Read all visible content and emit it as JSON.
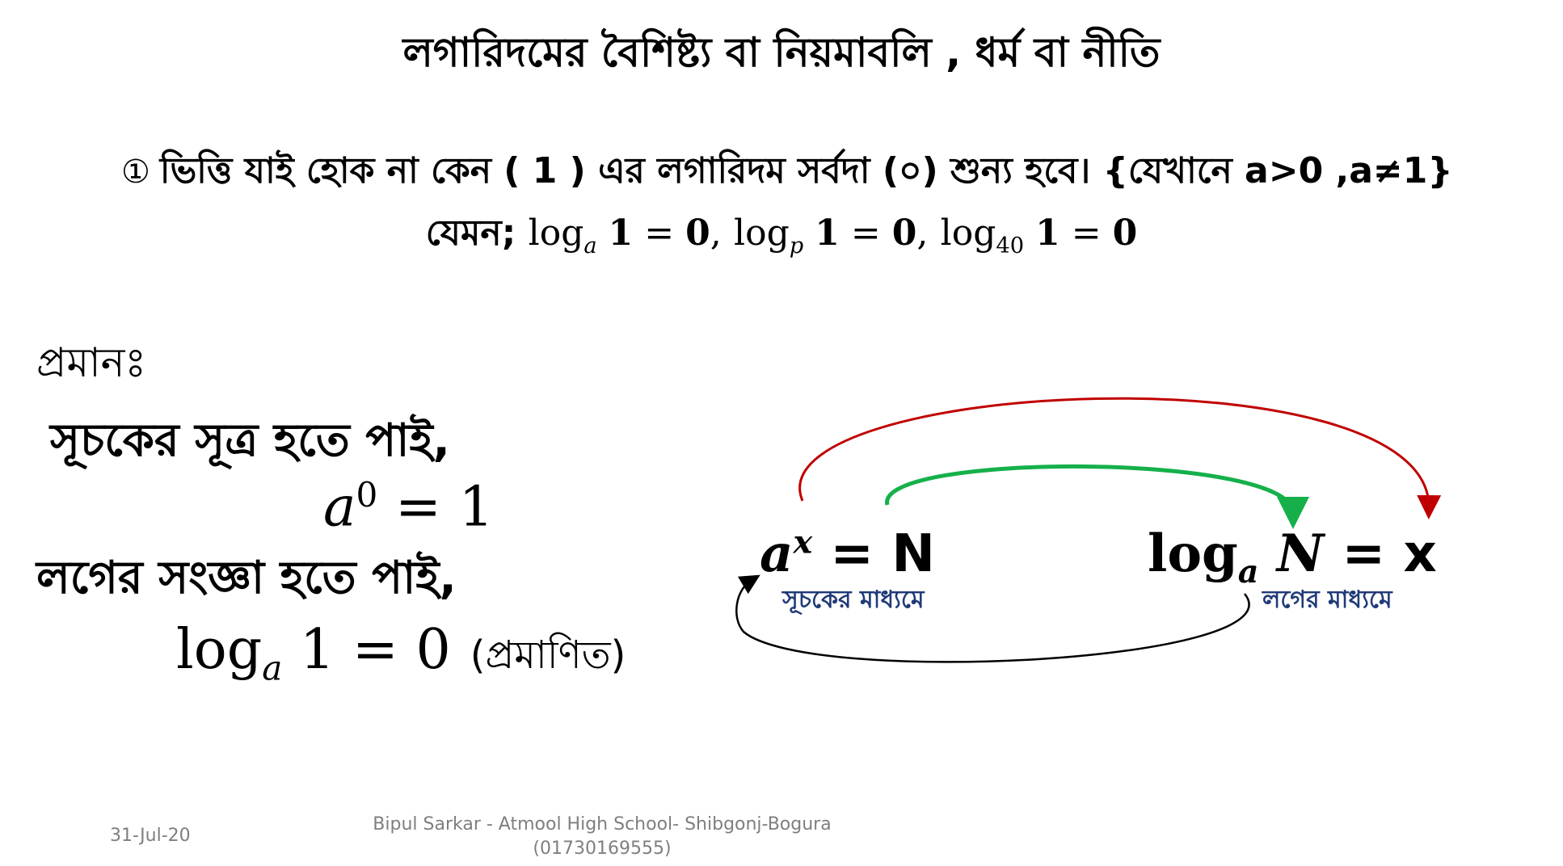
{
  "title": "লগারিদমের বৈশিষ্ট্য বা নিয়মাবলি , ধর্ম বা নীতি",
  "rule": {
    "number": "①",
    "text": "ভিত্তি যাই হোক না কেন ( 1 ) এর লগারিদম সর্বদা (০) শুন্য হবে।",
    "condition": "{যেখানে a>0  ,a≠1}"
  },
  "example": {
    "label": "যেমন;",
    "expr1_base": "a",
    "expr2_base": "p",
    "expr3_base": "40",
    "log_word": "log",
    "arg": "1",
    "result": "0"
  },
  "proof": {
    "label": "প্রমানঃ",
    "line1": "সূচকের সূত্র হতে পাই,",
    "eq1_base": "a",
    "eq1_exp": "0",
    "eq1_rhs": "= 1",
    "line2": "লগের সংজ্ঞা হতে পাই,",
    "eq2_log": "log",
    "eq2_base": "a",
    "eq2_rest": "1 = 0",
    "proved": "(প্রমাণিত)"
  },
  "diagram": {
    "exp_base": "a",
    "exp_power": "x",
    "exp_rest": " =  N",
    "log_word": "log",
    "log_base": "a",
    "log_arg": "N",
    "log_rest": " =  x",
    "caption_exp": "সূচকের মাধ্যমে",
    "caption_log": "লগের মাধ্যমে",
    "color_outer_arrow": "#c00000",
    "color_inner_arrow": "#16b04a",
    "color_bottom_arrow": "#000000"
  },
  "footer": {
    "date": "31-Jul-20",
    "author_line1": "Bipul Sarkar - Atmool High School- Shibgonj-Bogura",
    "author_line2": "(01730169555)"
  }
}
